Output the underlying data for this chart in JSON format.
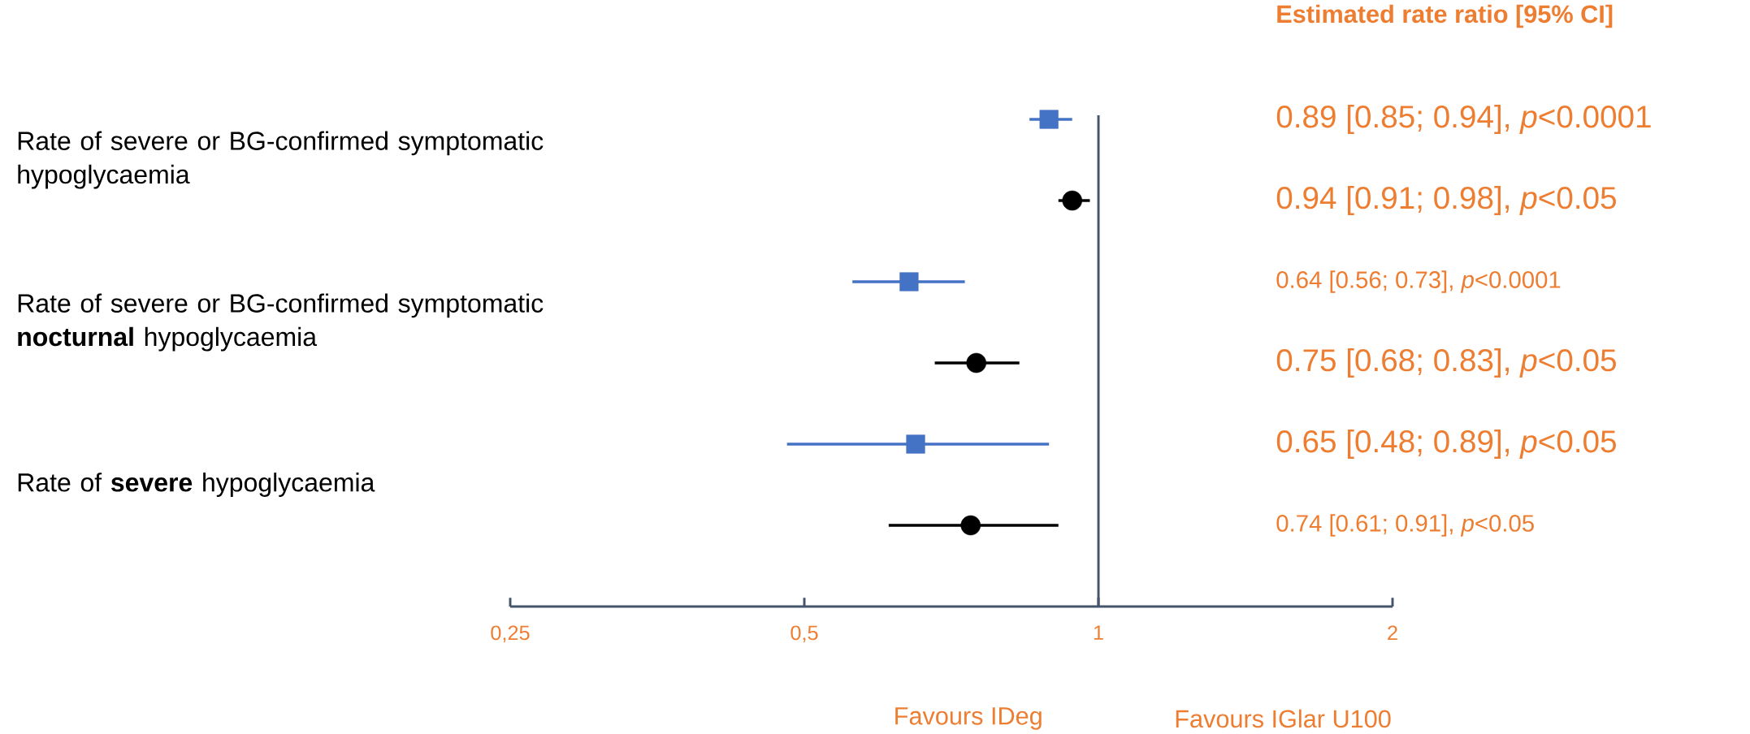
{
  "chart_data": {
    "type": "scatter",
    "orientation": "horizontal",
    "categories": [
      "Rate of severe or BG-confirmed symptomatic hypoglycaemia",
      "Rate of severe or BG-confirmed symptomatic **nocturnal** hypoglycaemia",
      "Rate of **severe** hypoglycaemia"
    ],
    "series": [
      {
        "color": "#4472c4",
        "marker": "square",
        "values": [
          0.89,
          0.64,
          0.65
        ],
        "errors": [
          [
            0.85,
            0.94
          ],
          [
            0.56,
            0.73
          ],
          [
            0.48,
            0.89
          ]
        ]
      },
      {
        "color": "#000000",
        "marker": "circle",
        "values": [
          0.94,
          0.75,
          0.74
        ],
        "errors": [
          [
            0.91,
            0.98
          ],
          [
            0.68,
            0.83
          ],
          [
            0.61,
            0.91
          ]
        ]
      }
    ],
    "log": "x",
    "xlim": [
      0.25,
      2
    ],
    "xticks": [
      {
        "value": 0.25,
        "label": "0,25"
      },
      {
        "value": 0.5,
        "label": "0,5"
      },
      1,
      2
    ],
    "ref_lines": [
      {
        "axis": "x",
        "value": 1,
        "color": "#44546a"
      }
    ],
    "annotations": [
      "Estimated rate ratio [95% CI]",
      "0.89 [0.85; 0.94], *p*<0.0001",
      "0.94 [0.91; 0.98], *p*<0.05",
      "0.64 [0.56; 0.73], *p*<0.0001",
      "0.75 [0.68; 0.83], *p*<0.05",
      "0.65 [0.48; 0.89], *p*<0.05",
      "0.74 [0.61; 0.91], *p*<0.05",
      "Favours IDeg",
      "Favours IGlar U100"
    ]
  }
}
